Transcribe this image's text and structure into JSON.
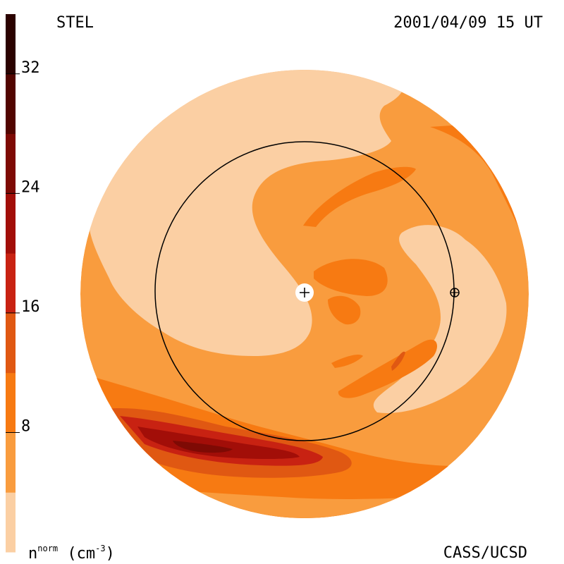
{
  "header": {
    "source": "STEL",
    "datetime": "2001/04/09 15 UT"
  },
  "footer": {
    "unit_base": "n",
    "unit_sup": "norm",
    "unit_open": " (cm",
    "unit_exp": "-3",
    "unit_close": ")",
    "credit": "CASS/UCSD"
  },
  "chart_data": {
    "type": "heatmap",
    "title": "",
    "colorbar": {
      "ticks": [
        8,
        16,
        24,
        32
      ],
      "range": [
        0,
        36
      ],
      "levels": [
        0,
        4,
        8,
        12,
        16,
        20,
        24,
        28,
        32,
        36
      ],
      "colors": [
        "#fbcfa3",
        "#f99c3e",
        "#f77a12",
        "#e05812",
        "#c82212",
        "#a20e08",
        "#7e0a04",
        "#520500",
        "#2b0200"
      ]
    },
    "markers": [
      "sun",
      "earth"
    ],
    "earth_orbit_ring": true
  }
}
